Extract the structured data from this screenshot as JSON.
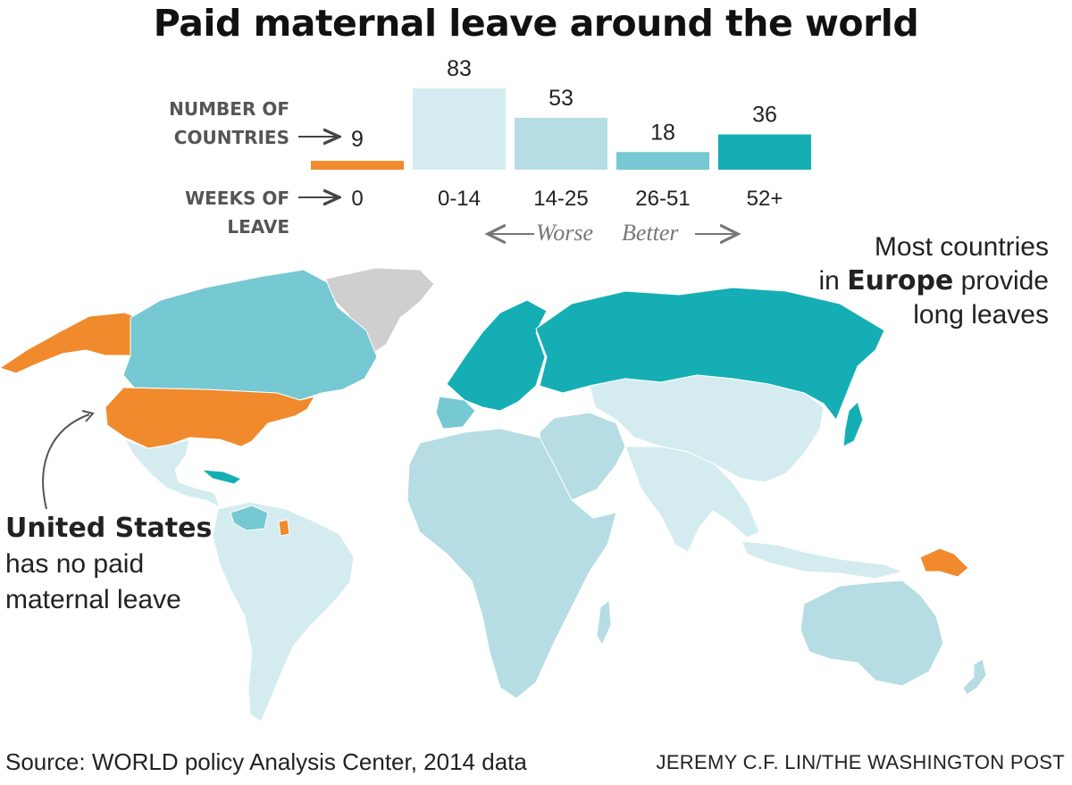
{
  "title": "Paid maternal leave around the world",
  "labels": {
    "countries_line1": "NUMBER OF",
    "countries_line2": "COUNTRIES",
    "weeks_line1": "WEEKS OF",
    "weeks_line2": "LEAVE",
    "worse": "Worse",
    "better": "Better"
  },
  "chart_data": {
    "type": "bar",
    "title": "Paid maternal leave around the world",
    "xlabel": "WEEKS OF LEAVE",
    "ylabel": "NUMBER OF COUNTRIES",
    "categories": [
      "0",
      "0-14",
      "14-25",
      "26-51",
      "52+"
    ],
    "values": [
      9,
      83,
      53,
      18,
      36
    ],
    "colors": [
      "#f08a2c",
      "#d4ecf0",
      "#b5dde3",
      "#76c8d2",
      "#15aeb5"
    ],
    "ylim": [
      0,
      83
    ]
  },
  "map": {
    "legend_colors": {
      "no_leave": "#f08a2c",
      "weeks_0_14": "#d4ecf0",
      "weeks_14_25": "#b5dde3",
      "weeks_26_51": "#76c8d2",
      "weeks_52_plus": "#15aeb5",
      "no_data": "#cfcfcf"
    }
  },
  "annotations": {
    "europe_line1": "Most countries",
    "europe_in": "in ",
    "europe_bold": "Europe",
    "europe_provide": " provide",
    "europe_line3": "long leaves",
    "us_bold": "United States",
    "us_line2": "has no paid",
    "us_line3": "maternal leave"
  },
  "source": "Source: WORLD policy Analysis Center, 2014 data",
  "credit": "JEREMY C.F. LIN/THE WASHINGTON POST"
}
